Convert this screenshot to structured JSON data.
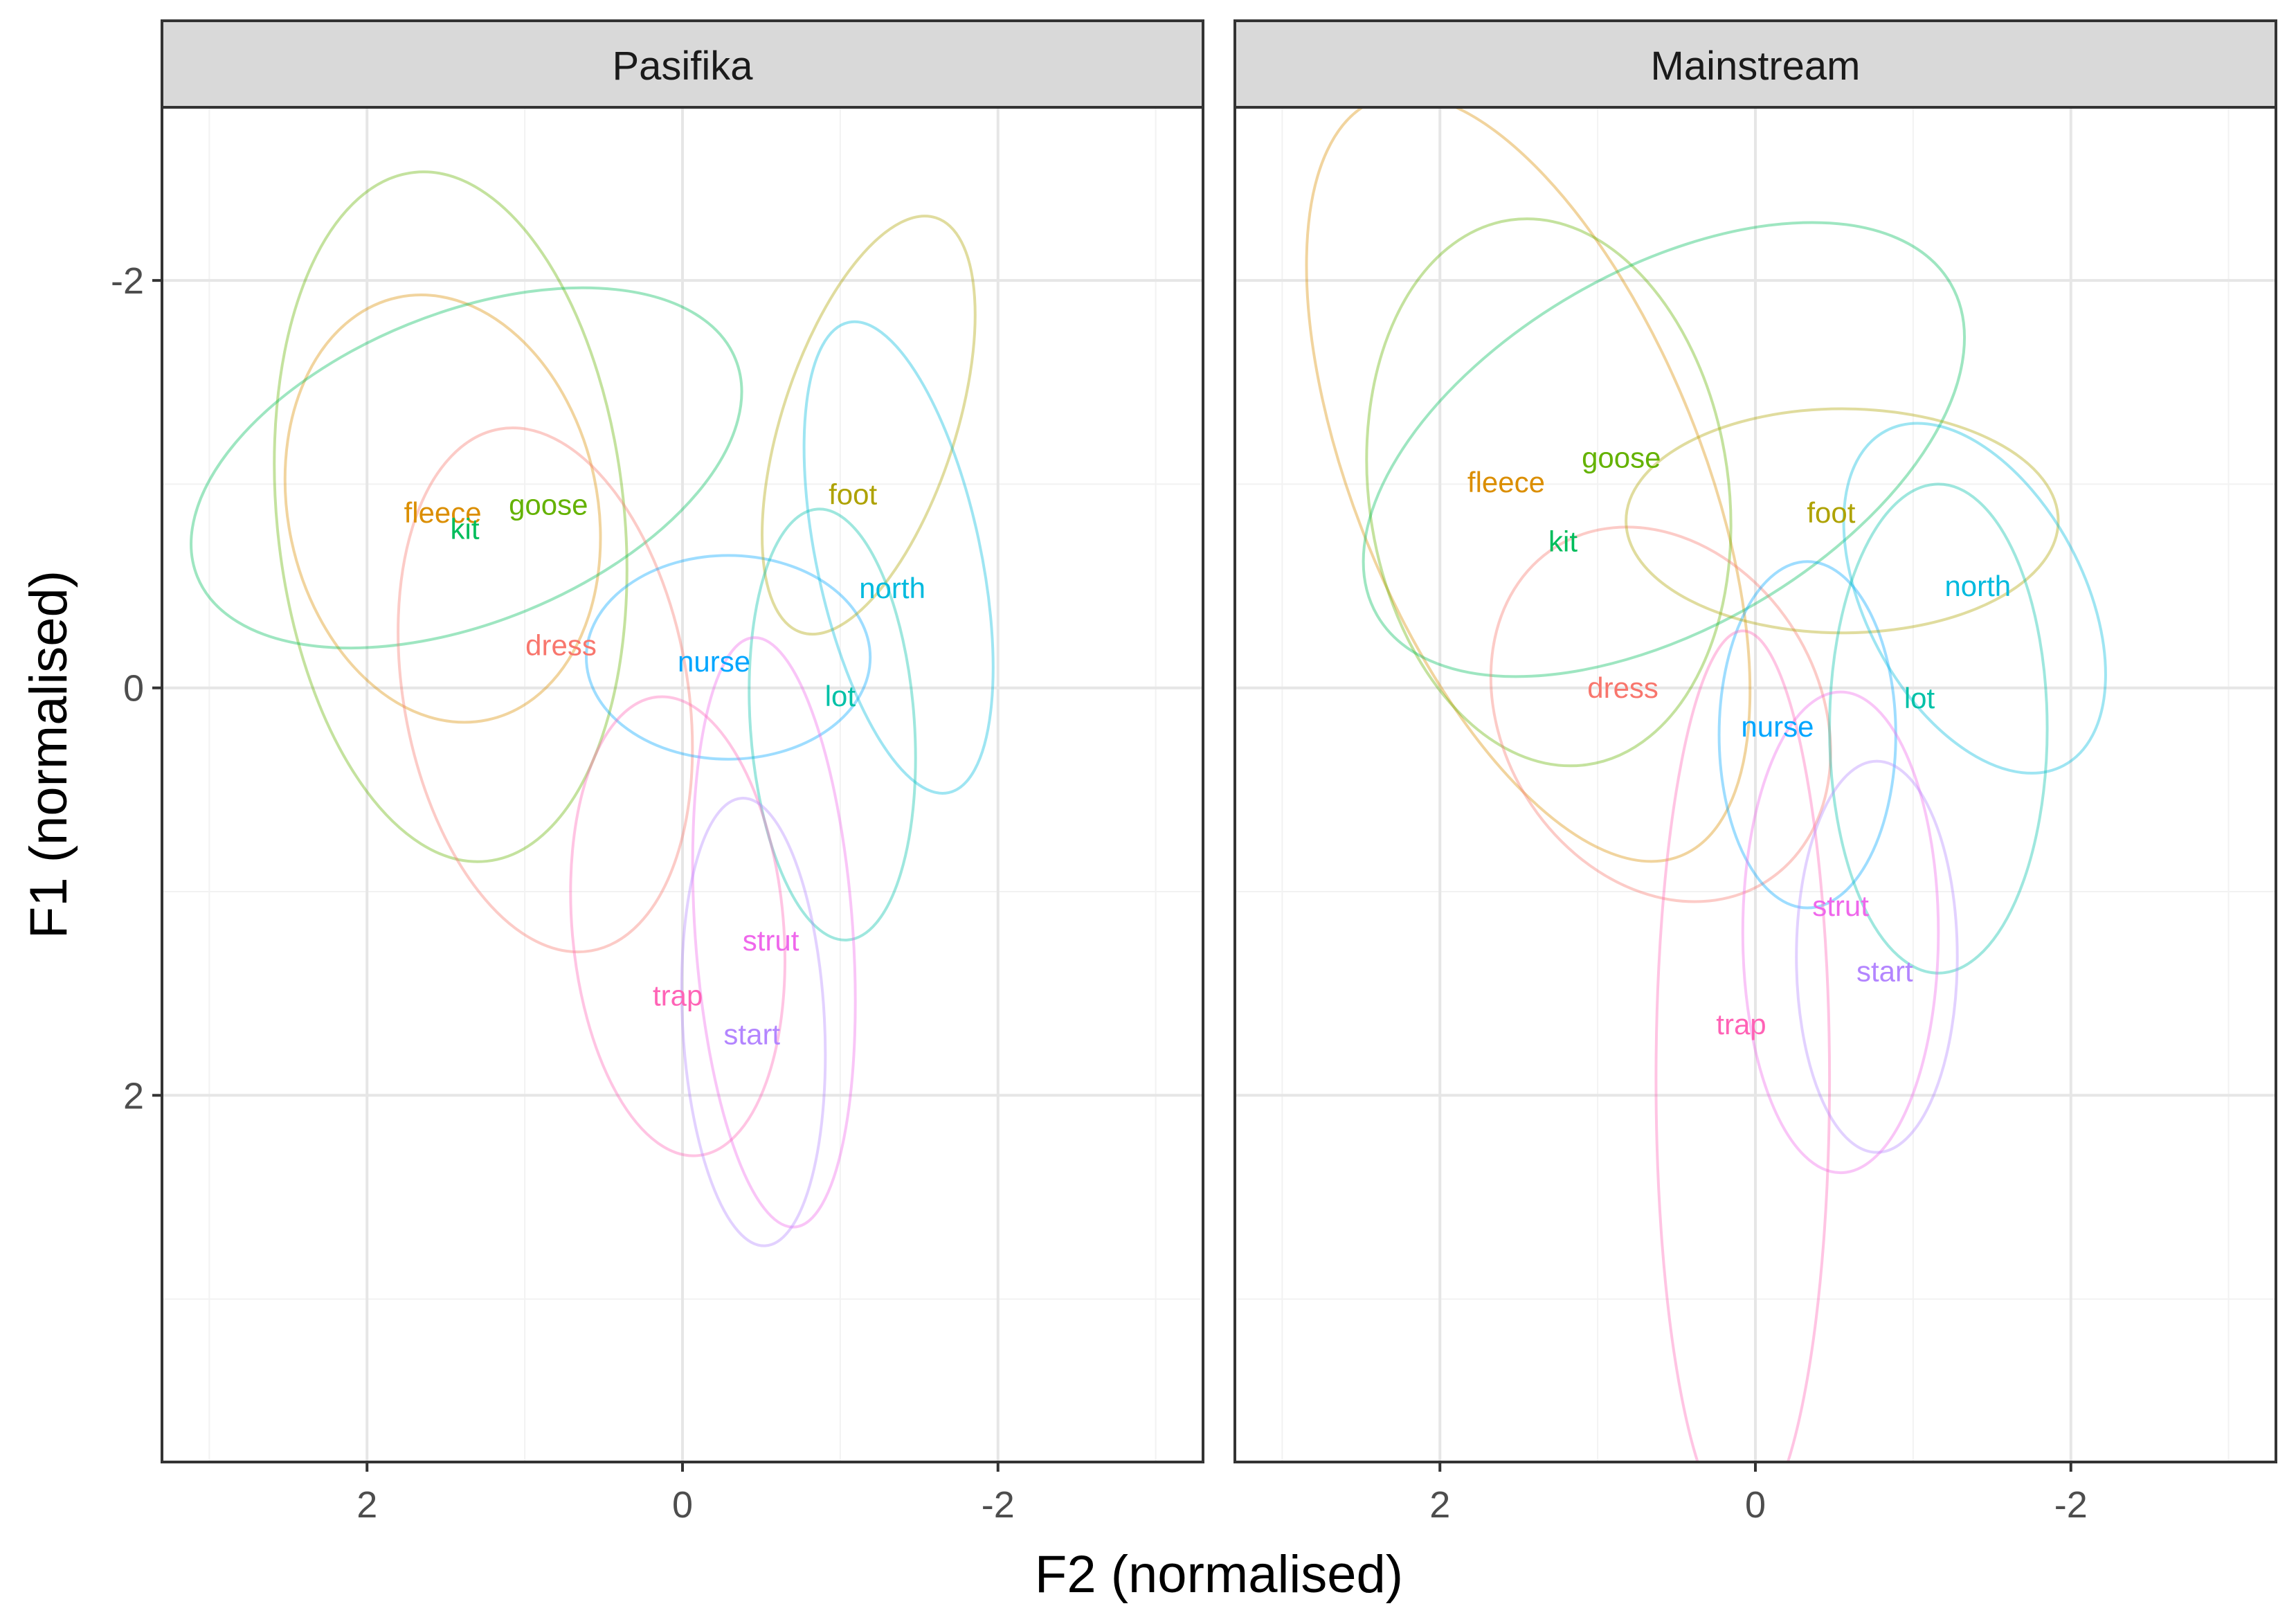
{
  "chart_data": {
    "type": "scatter",
    "subtype": "vowel-ellipse-plot",
    "xlabel": "F2 (normalised)",
    "ylabel": "F1 (normalised)",
    "x_reversed": true,
    "y_reversed": true,
    "xlim": [
      3.3,
      -3.3
    ],
    "ylim": [
      -2.85,
      3.8
    ],
    "x_ticks": [
      2,
      0,
      -2
    ],
    "x_tick_labels": [
      "2",
      "0",
      "-2"
    ],
    "y_ticks": [
      -2,
      0,
      2
    ],
    "y_tick_labels": [
      "-2",
      "0",
      "2"
    ],
    "x_minor_gridlines": [
      3,
      1,
      -1,
      -3
    ],
    "y_minor_gridlines": [
      -1,
      1,
      3
    ],
    "colors": {
      "dress": "#F8766D",
      "fleece": "#DB8E00",
      "foot": "#AEA200",
      "goose": "#64B200",
      "kit": "#00BD5C",
      "lot": "#00C1A7",
      "north": "#00BADE",
      "nurse": "#00A6FF",
      "start": "#B385FF",
      "strut": "#EF67EB",
      "trap": "#FF63B6"
    },
    "panels": [
      {
        "title": "Pasifika",
        "vowels": [
          {
            "name": "fleece",
            "label": "fleece",
            "x": 1.52,
            "y": -0.86,
            "ellipse": {
              "cx": 1.52,
              "cy": -0.88,
              "rx": 0.98,
              "ry": 1.06,
              "angle": -12
            }
          },
          {
            "name": "goose",
            "label": "goose",
            "x": 0.85,
            "y": -0.9,
            "ellipse": {
              "cx": 1.47,
              "cy": -0.84,
              "rx": 1.1,
              "ry": 1.7,
              "angle": -6
            }
          },
          {
            "name": "kit",
            "label": "kit",
            "x": 1.38,
            "y": -0.78,
            "ellipse": {
              "cx": 1.37,
              "cy": -1.08,
              "rx": 1.84,
              "ry": 0.76,
              "angle": -22
            }
          },
          {
            "name": "dress",
            "label": "dress",
            "x": 0.77,
            "y": -0.21,
            "ellipse": {
              "cx": 0.87,
              "cy": 0.01,
              "rx": 0.9,
              "ry": 1.3,
              "angle": -10
            }
          },
          {
            "name": "nurse",
            "label": "nurse",
            "x": -0.2,
            "y": -0.13,
            "ellipse": {
              "cx": -0.29,
              "cy": -0.15,
              "rx": 0.9,
              "ry": 0.5,
              "angle": 0
            }
          },
          {
            "name": "foot",
            "label": "foot",
            "x": -1.08,
            "y": -0.95,
            "ellipse": {
              "cx": -1.18,
              "cy": -1.29,
              "rx": 0.55,
              "ry": 1.07,
              "angle": 18
            }
          },
          {
            "name": "north",
            "label": "north",
            "x": -1.33,
            "y": -0.49,
            "ellipse": {
              "cx": -1.37,
              "cy": -0.64,
              "rx": 0.52,
              "ry": 1.18,
              "angle": -12
            }
          },
          {
            "name": "lot",
            "label": "lot",
            "x": -1.0,
            "y": 0.04,
            "ellipse": {
              "cx": -0.95,
              "cy": 0.18,
              "rx": 0.52,
              "ry": 1.06,
              "angle": -4
            }
          },
          {
            "name": "strut",
            "label": "strut",
            "x": -0.56,
            "y": 1.24,
            "ellipse": {
              "cx": -0.58,
              "cy": 1.2,
              "rx": 0.5,
              "ry": 1.45,
              "angle": -4
            }
          },
          {
            "name": "trap",
            "label": "trap",
            "x": 0.03,
            "y": 1.51,
            "ellipse": {
              "cx": 0.03,
              "cy": 1.17,
              "rx": 0.67,
              "ry": 1.13,
              "angle": -5
            }
          },
          {
            "name": "start",
            "label": "start",
            "x": -0.44,
            "y": 1.7,
            "ellipse": {
              "cx": -0.45,
              "cy": 1.64,
              "rx": 0.45,
              "ry": 1.1,
              "angle": -3
            }
          }
        ]
      },
      {
        "title": "Mainstream",
        "vowels": [
          {
            "name": "fleece",
            "label": "fleece",
            "x": 1.58,
            "y": -1.01,
            "ellipse": {
              "cx": 1.44,
              "cy": -1.03,
              "rx": 1.1,
              "ry": 2.0,
              "angle": -22
            }
          },
          {
            "name": "goose",
            "label": "goose",
            "x": 0.85,
            "y": -1.13,
            "ellipse": {
              "cx": 1.31,
              "cy": -0.96,
              "rx": 1.14,
              "ry": 1.35,
              "angle": -8
            }
          },
          {
            "name": "kit",
            "label": "kit",
            "x": 1.22,
            "y": -0.72,
            "ellipse": {
              "cx": 0.58,
              "cy": -1.17,
              "rx": 2.1,
              "ry": 0.88,
              "angle": -30
            }
          },
          {
            "name": "dress",
            "label": "dress",
            "x": 0.84,
            "y": 0.0,
            "ellipse": {
              "cx": 0.6,
              "cy": 0.13,
              "rx": 1.0,
              "ry": 0.97,
              "angle": -32
            }
          },
          {
            "name": "nurse",
            "label": "nurse",
            "x": -0.14,
            "y": 0.19,
            "ellipse": {
              "cx": -0.33,
              "cy": 0.23,
              "rx": 0.56,
              "ry": 0.85,
              "angle": 0
            }
          },
          {
            "name": "foot",
            "label": "foot",
            "x": -0.48,
            "y": -0.86,
            "ellipse": {
              "cx": -0.55,
              "cy": -0.82,
              "rx": 1.37,
              "ry": 0.55,
              "angle": 0
            }
          },
          {
            "name": "north",
            "label": "north",
            "x": -1.41,
            "y": -0.5,
            "ellipse": {
              "cx": -1.39,
              "cy": -0.44,
              "rx": 0.69,
              "ry": 0.93,
              "angle": -28
            }
          },
          {
            "name": "lot",
            "label": "lot",
            "x": -1.04,
            "y": 0.05,
            "ellipse": {
              "cx": -1.16,
              "cy": 0.2,
              "rx": 0.69,
              "ry": 1.2,
              "angle": 0
            }
          },
          {
            "name": "strut",
            "label": "strut",
            "x": -0.54,
            "y": 1.07,
            "ellipse": {
              "cx": -0.54,
              "cy": 1.2,
              "rx": 0.62,
              "ry": 1.18,
              "angle": 0
            }
          },
          {
            "name": "trap",
            "label": "trap",
            "x": 0.09,
            "y": 1.65,
            "ellipse": {
              "cx": 0.08,
              "cy": 1.92,
              "rx": 0.55,
              "ry": 2.2,
              "angle": 0
            }
          },
          {
            "name": "start",
            "label": "start",
            "x": -0.82,
            "y": 1.39,
            "ellipse": {
              "cx": -0.77,
              "cy": 1.32,
              "rx": 0.51,
              "ry": 0.96,
              "angle": 0
            }
          }
        ]
      }
    ]
  }
}
